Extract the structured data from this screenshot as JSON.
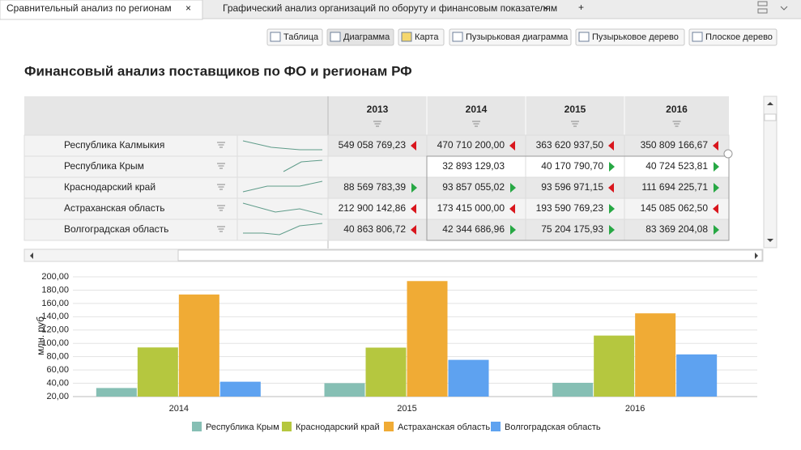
{
  "tabs": [
    {
      "title": "Сравнительный анализ по регионам",
      "active": true
    },
    {
      "title": "Графический анализ организаций по оборуту и финансовым показателям",
      "active": false
    }
  ],
  "toolbar": [
    "Таблица",
    "Диаграмма",
    "Карта",
    "Пузырьковая диаграмма",
    "Пузырьковое дерево",
    "Плоское дерево"
  ],
  "title": "Финансовый анализ поставщиков по ФО и регионам РФ",
  "table": {
    "columns": [
      "2013",
      "2014",
      "2015",
      "2016"
    ],
    "rows": [
      {
        "region": "Республика Калмыкия",
        "cells": [
          {
            "text": "549 058 769,23",
            "trend": "down"
          },
          {
            "text": "470 710 200,00",
            "trend": "down"
          },
          {
            "text": "363 620 937,50",
            "trend": "down"
          },
          {
            "text": "350 809 166,67",
            "trend": "down"
          }
        ]
      },
      {
        "region": "Республика Крым",
        "cells": [
          null,
          {
            "text": "32 893 129,03"
          },
          {
            "text": "40 170 790,70",
            "trend": "up"
          },
          {
            "text": "40 724 523,81",
            "trend": "up"
          }
        ]
      },
      {
        "region": "Краснодарский край",
        "cells": [
          {
            "text": "88 569 783,39",
            "trend": "up"
          },
          {
            "text": "93 857 055,02",
            "trend": "up"
          },
          {
            "text": "93 596 971,15",
            "trend": "down"
          },
          {
            "text": "111 694 225,71",
            "trend": "up"
          }
        ]
      },
      {
        "region": "Астраханская область",
        "cells": [
          {
            "text": "212 900 142,86",
            "trend": "down"
          },
          {
            "text": "173 415 000,00",
            "trend": "down"
          },
          {
            "text": "193 590 769,23",
            "trend": "up"
          },
          {
            "text": "145 085 062,50",
            "trend": "down"
          }
        ]
      },
      {
        "region": "Волгоградская область",
        "cells": [
          {
            "text": "40 863 806,72",
            "trend": "down"
          },
          {
            "text": "42 344 686,96",
            "trend": "up"
          },
          {
            "text": "75 204 175,93",
            "trend": "up"
          },
          {
            "text": "83 369 204,08",
            "trend": "up"
          }
        ]
      }
    ]
  },
  "chart_data": {
    "type": "bar",
    "ylabel": "млн. руб",
    "categories": [
      "2014",
      "2015",
      "2016"
    ],
    "series": [
      {
        "name": "Республика Крым",
        "color": "#86bfb4",
        "values": [
          32.89,
          40.17,
          40.72
        ]
      },
      {
        "name": "Краснодарский край",
        "color": "#b5c73f",
        "values": [
          93.86,
          93.6,
          111.69
        ]
      },
      {
        "name": "Астраханская область",
        "color": "#f0ab35",
        "values": [
          173.42,
          193.59,
          145.09
        ]
      },
      {
        "name": "Волгоградская область",
        "color": "#5ea2f0",
        "values": [
          42.34,
          75.2,
          83.37
        ]
      }
    ],
    "ylim": [
      20,
      200
    ],
    "yticks": [
      {
        "value": 20,
        "label": "20,00"
      },
      {
        "value": 40,
        "label": "40,00"
      },
      {
        "value": 60,
        "label": "60,00"
      },
      {
        "value": 80,
        "label": "80,00"
      },
      {
        "value": 100,
        "label": "100,00"
      },
      {
        "value": 120,
        "label": "120,00"
      },
      {
        "value": 140,
        "label": "140,00"
      },
      {
        "value": 160,
        "label": "160,00"
      },
      {
        "value": 180,
        "label": "180,00"
      },
      {
        "value": 200,
        "label": "200,00"
      }
    ],
    "grid": true,
    "legend": "bottom"
  }
}
